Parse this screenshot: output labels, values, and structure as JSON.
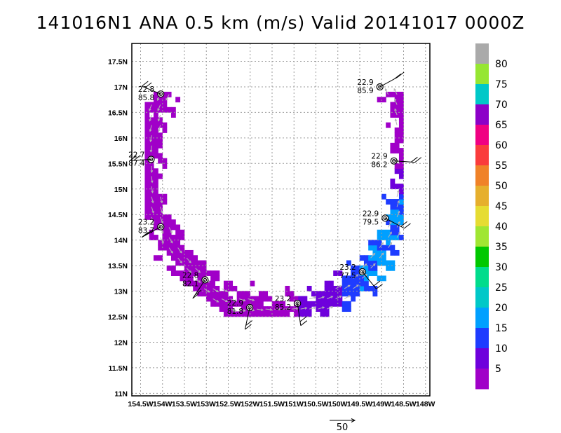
{
  "title": "141016N1 ANA 0.5 km (m/s) Valid 20141017 0000Z",
  "map": {
    "lat_labels": [
      "17.5N",
      "17N",
      "16.5N",
      "16N",
      "15.5N",
      "15N",
      "14.5N",
      "14N",
      "13.5N",
      "13N",
      "12.5N",
      "12N",
      "11.5N",
      "11N"
    ],
    "lon_labels": [
      "154.5W",
      "154W",
      "153.5W",
      "153W",
      "152.5W",
      "152W",
      "151.5W",
      "151W",
      "150.5W",
      "150W",
      "149.5W",
      "149W",
      "148.5W",
      "148W"
    ],
    "lat_range": [
      10.95,
      17.85
    ],
    "lon_range": [
      -154.7,
      -147.9
    ],
    "grid": true
  },
  "colorbar": {
    "labels": [
      "5",
      "10",
      "15",
      "20",
      "25",
      "30",
      "35",
      "40",
      "45",
      "50",
      "55",
      "60",
      "65",
      "70",
      "75",
      "80"
    ],
    "colors": [
      "#a000c8",
      "#6e00dc",
      "#1e3cff",
      "#00a0ff",
      "#00c8c8",
      "#00dc8c",
      "#00c800",
      "#a0e632",
      "#e6dc32",
      "#e6af2d",
      "#f08228",
      "#fa3c3c",
      "#f00082",
      "#8c00c8",
      "#00c8c8",
      "#96e632",
      "#aaaaaa"
    ]
  },
  "stations": [
    {
      "lat": 16.86,
      "lon": -154.04,
      "temp": "22.8",
      "rh": "85.8"
    },
    {
      "lat": 15.58,
      "lon": -154.26,
      "temp": "22.7",
      "rh": "87.4"
    },
    {
      "lat": 14.26,
      "lon": -154.04,
      "temp": "23.2",
      "rh": "83.7"
    },
    {
      "lat": 13.22,
      "lon": -153.03,
      "temp": "22.8",
      "rh": "82.1"
    },
    {
      "lat": 12.68,
      "lon": -152.01,
      "temp": "22.9",
      "rh": "81.8"
    },
    {
      "lat": 12.76,
      "lon": -150.92,
      "temp": "23.2",
      "rh": "85.2"
    },
    {
      "lat": 13.38,
      "lon": -149.44,
      "temp": "23.2",
      "rh": "77.5"
    },
    {
      "lat": 14.43,
      "lon": -148.92,
      "temp": "22.9",
      "rh": "79.5"
    },
    {
      "lat": 17.0,
      "lon": -149.04,
      "temp": "22.9",
      "rh": "85.9"
    },
    {
      "lat": 15.55,
      "lon": -148.72,
      "temp": "22.9",
      "rh": "86.2"
    }
  ],
  "reference_vector": "50"
}
